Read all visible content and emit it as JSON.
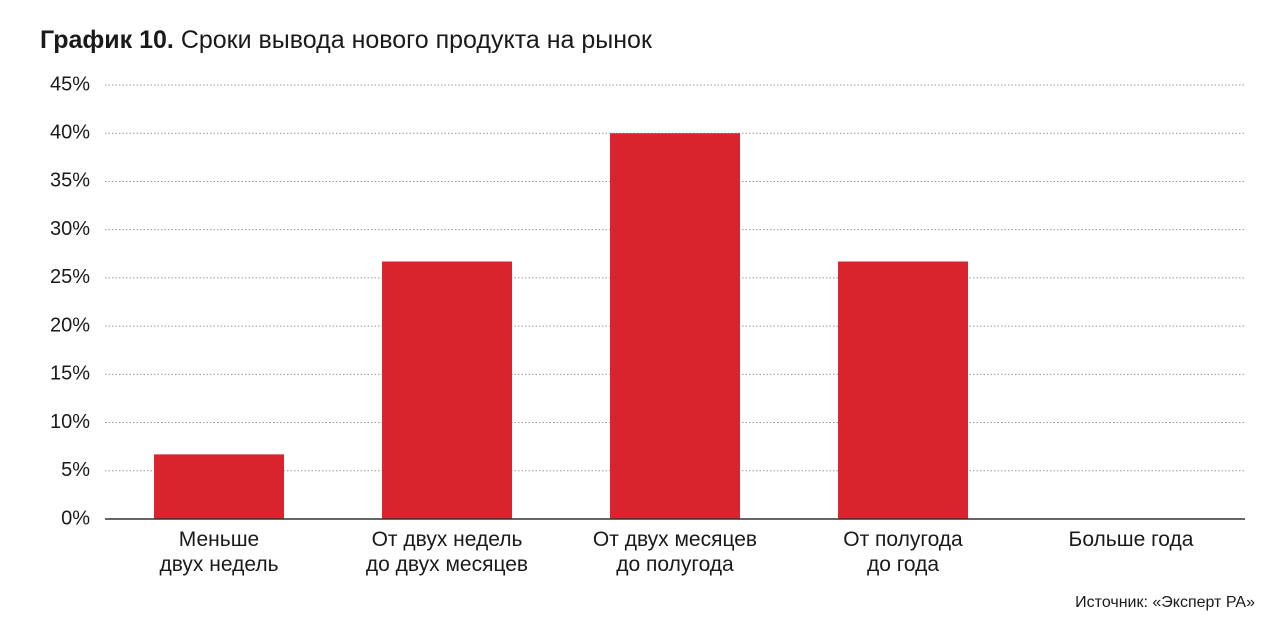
{
  "chart_data": {
    "type": "bar",
    "chart_label": "График 10.",
    "title": "Сроки вывода нового продукта на рынок",
    "categories": [
      "Меньше\nдвух недель",
      "От двух недель\nдо двух месяцев",
      "От двух месяцев\nдо полугода",
      "От полугода\nдо года",
      "Больше года"
    ],
    "values": [
      6.7,
      26.7,
      40,
      26.7,
      0
    ],
    "color": "#d9232d",
    "ylim": [
      0,
      45
    ],
    "yticks": [
      {
        "value": 0,
        "label": "0%"
      },
      {
        "value": 5,
        "label": "5%"
      },
      {
        "value": 10,
        "label": "10%"
      },
      {
        "value": 15,
        "label": "15%"
      },
      {
        "value": 20,
        "label": "20%"
      },
      {
        "value": 25,
        "label": "25%"
      },
      {
        "value": 30,
        "label": "30%"
      },
      {
        "value": 35,
        "label": "35%"
      },
      {
        "value": 40,
        "label": "40%"
      },
      {
        "value": 45,
        "label": "45%"
      }
    ],
    "grid": true,
    "source": "Источник: «Эксперт РА»"
  }
}
